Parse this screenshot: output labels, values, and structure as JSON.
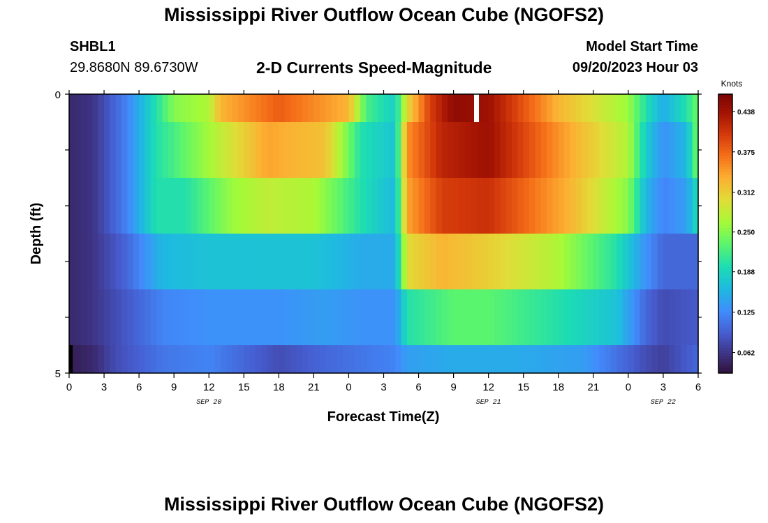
{
  "title": "Mississippi River Outflow Ocean Cube (NGOFS2)",
  "station": {
    "id": "SHBL1",
    "coords": "29.8680N  89.6730W"
  },
  "subtitle": "2-D Currents Speed-Magnitude",
  "model_start": {
    "label": "Model Start Time",
    "value": "09/20/2023 Hour 03"
  },
  "bottom_title": "Mississippi River Outflow Ocean Cube (NGOFS2)",
  "chart_data": {
    "type": "heatmap",
    "xlabel": "Forecast Time(Z)",
    "ylabel": "Depth (ft)",
    "ylim": [
      0,
      5
    ],
    "y_tick_labels": [
      "0",
      "5"
    ],
    "x_range_hours": [
      0,
      54
    ],
    "x_tick_labels": [
      "0",
      "3",
      "6",
      "9",
      "12",
      "15",
      "18",
      "21",
      "0",
      "3",
      "6",
      "9",
      "12",
      "15",
      "18",
      "21",
      "0",
      "3",
      "6"
    ],
    "x_date_labels": [
      {
        "text": "SEP 20",
        "hour": 12
      },
      {
        "text": "SEP 21",
        "hour": 36
      },
      {
        "text": "SEP 22",
        "hour": 51
      }
    ],
    "colorbar": {
      "label": "Knots",
      "range": [
        0.03,
        0.465
      ],
      "ticks": [
        "0.438",
        "0.375",
        "0.312",
        "0.250",
        "0.188",
        "0.125",
        "0.062"
      ],
      "tick_values": [
        0.438,
        0.375,
        0.312,
        0.25,
        0.188,
        0.125,
        0.062
      ]
    },
    "depth_layers": [
      "0-1",
      "1-2",
      "2-3",
      "3-4",
      "4-5"
    ],
    "layer_keyframes": [
      [
        [
          0,
          0.05
        ],
        [
          2,
          0.06
        ],
        [
          5,
          0.12
        ],
        [
          7.5,
          0.2
        ],
        [
          9,
          0.25
        ],
        [
          12,
          0.27
        ],
        [
          13,
          0.33
        ],
        [
          18,
          0.38
        ],
        [
          24,
          0.33
        ],
        [
          25.5,
          0.22
        ],
        [
          28,
          0.18
        ],
        [
          29,
          0.3
        ],
        [
          31,
          0.4
        ],
        [
          33,
          0.45
        ],
        [
          36,
          0.44
        ],
        [
          42,
          0.33
        ],
        [
          48,
          0.26
        ],
        [
          49.5,
          0.2
        ],
        [
          51,
          0.15
        ],
        [
          53,
          0.2
        ],
        [
          54,
          0.24
        ]
      ],
      [
        [
          0,
          0.05
        ],
        [
          2,
          0.06
        ],
        [
          5,
          0.12
        ],
        [
          7.5,
          0.2
        ],
        [
          9,
          0.22
        ],
        [
          13,
          0.28
        ],
        [
          17,
          0.34
        ],
        [
          22,
          0.32
        ],
        [
          25,
          0.2
        ],
        [
          28,
          0.17
        ],
        [
          29,
          0.35
        ],
        [
          32,
          0.42
        ],
        [
          36,
          0.44
        ],
        [
          42,
          0.35
        ],
        [
          48,
          0.27
        ],
        [
          49.5,
          0.18
        ],
        [
          51,
          0.13
        ],
        [
          53,
          0.16
        ],
        [
          54,
          0.25
        ]
      ],
      [
        [
          0,
          0.05
        ],
        [
          2,
          0.06
        ],
        [
          5,
          0.12
        ],
        [
          7.5,
          0.2
        ],
        [
          10,
          0.2
        ],
        [
          14,
          0.26
        ],
        [
          17,
          0.28
        ],
        [
          21,
          0.27
        ],
        [
          25,
          0.2
        ],
        [
          28,
          0.16
        ],
        [
          29,
          0.34
        ],
        [
          32,
          0.4
        ],
        [
          36,
          0.41
        ],
        [
          43,
          0.33
        ],
        [
          48,
          0.25
        ],
        [
          49.5,
          0.16
        ],
        [
          51,
          0.12
        ],
        [
          53,
          0.14
        ],
        [
          54,
          0.2
        ]
      ],
      [
        [
          0,
          0.05
        ],
        [
          2,
          0.06
        ],
        [
          5,
          0.1
        ],
        [
          8,
          0.16
        ],
        [
          12,
          0.17
        ],
        [
          16,
          0.17
        ],
        [
          21,
          0.17
        ],
        [
          25,
          0.15
        ],
        [
          28,
          0.15
        ],
        [
          29,
          0.3
        ],
        [
          32,
          0.33
        ],
        [
          36,
          0.31
        ],
        [
          42,
          0.27
        ],
        [
          47,
          0.2
        ],
        [
          49.5,
          0.13
        ],
        [
          51,
          0.1
        ],
        [
          54,
          0.1
        ]
      ],
      [
        [
          0,
          0.05
        ],
        [
          2,
          0.06
        ],
        [
          5,
          0.09
        ],
        [
          8,
          0.12
        ],
        [
          12,
          0.13
        ],
        [
          18,
          0.13
        ],
        [
          22,
          0.14
        ],
        [
          25,
          0.13
        ],
        [
          28,
          0.13
        ],
        [
          29,
          0.2
        ],
        [
          33,
          0.23
        ],
        [
          36,
          0.23
        ],
        [
          42,
          0.2
        ],
        [
          47,
          0.17
        ],
        [
          49.5,
          0.1
        ],
        [
          51,
          0.08
        ],
        [
          54,
          0.09
        ]
      ],
      [
        [
          0,
          0.04
        ],
        [
          2,
          0.05
        ],
        [
          4,
          0.08
        ],
        [
          8,
          0.11
        ],
        [
          12,
          0.12
        ],
        [
          15,
          0.1
        ],
        [
          18,
          0.08
        ],
        [
          22,
          0.1
        ],
        [
          25,
          0.11
        ],
        [
          28,
          0.12
        ],
        [
          29,
          0.14
        ],
        [
          33,
          0.15
        ],
        [
          38,
          0.15
        ],
        [
          44,
          0.14
        ],
        [
          49.5,
          0.08
        ],
        [
          51,
          0.07
        ],
        [
          54,
          0.1
        ]
      ]
    ]
  }
}
